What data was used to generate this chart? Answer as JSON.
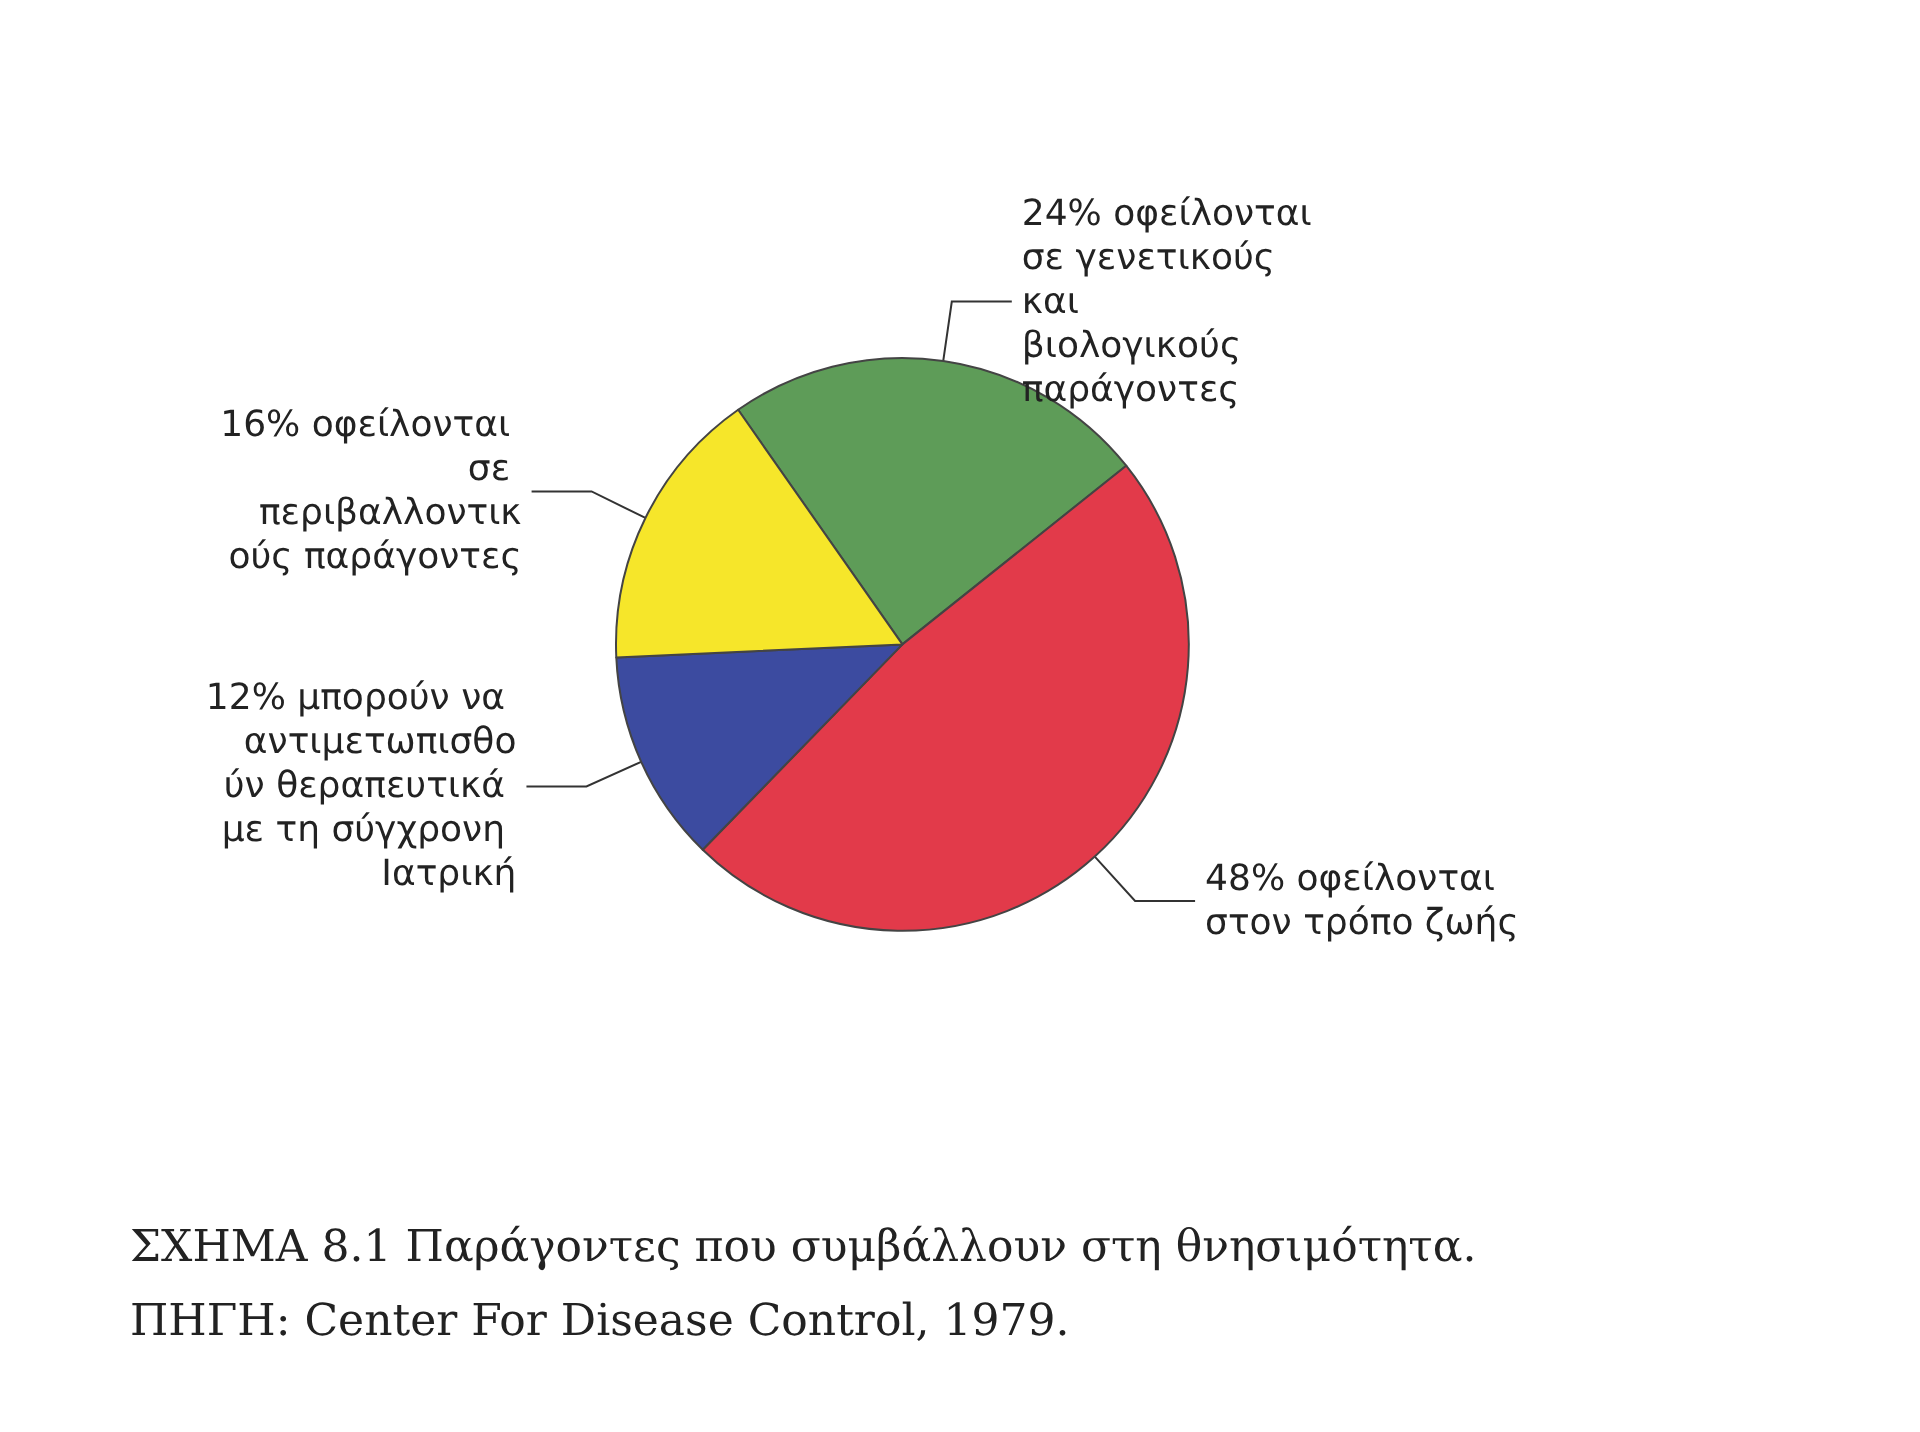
{
  "chart_data": {
    "type": "pie",
    "title": "ΣΧΗΜΑ 8.1 Παράγοντες που συμβάλλουν στη θνησιμότητα.",
    "annotations": [
      "ΠΗΓΗ: Center For Disease Control, 1979."
    ],
    "categories": [
      "24% οφείλονται σε γενετικούς και βιολογικούς παράγοντες",
      "48% οφείλονται στον τρόπο ζωής",
      "12% μπορούν να αντιμετωπισθούν θεραπευτικά με τη σύγχρονη Ιατρική",
      "16% οφείλονται σε περιβαλλοντικούς παράγοντες"
    ],
    "values": [
      24,
      48,
      12,
      16
    ],
    "colors": [
      "#5e9c58",
      "#e23a4a",
      "#3c4ba0",
      "#f6e62a"
    ],
    "legend": false
  }
}
